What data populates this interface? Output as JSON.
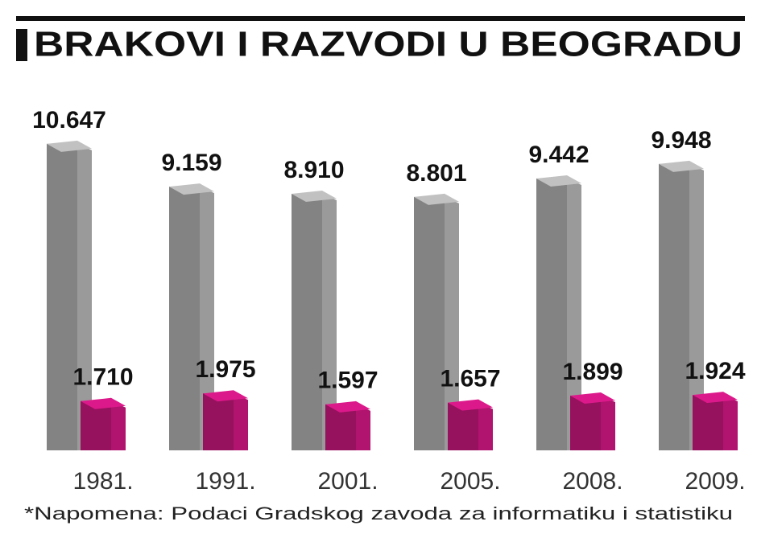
{
  "chart_data": {
    "type": "bar3d",
    "title": "BRAKOVI I RAZVODI U BEOGRADU",
    "note": "*Napomena: Podaci Gradskog zavoda za informatiku i statistiku",
    "categories": [
      "1981.",
      "1991.",
      "2001.",
      "2005.",
      "2008.",
      "2009."
    ],
    "series": [
      {
        "color": "#9a9a9a",
        "values": [
          10647,
          9159,
          8910,
          8801,
          9442,
          9948
        ],
        "value_labels": [
          "10.647",
          "9.159",
          "8.910",
          "8.801",
          "9.442",
          "9.948"
        ]
      },
      {
        "color": "#b0146e",
        "values": [
          1710,
          1975,
          1597,
          1657,
          1899,
          1924
        ],
        "value_labels": [
          "1.710",
          "1.975",
          "1.597",
          "1.657",
          "1.899",
          "1.924"
        ]
      }
    ]
  }
}
